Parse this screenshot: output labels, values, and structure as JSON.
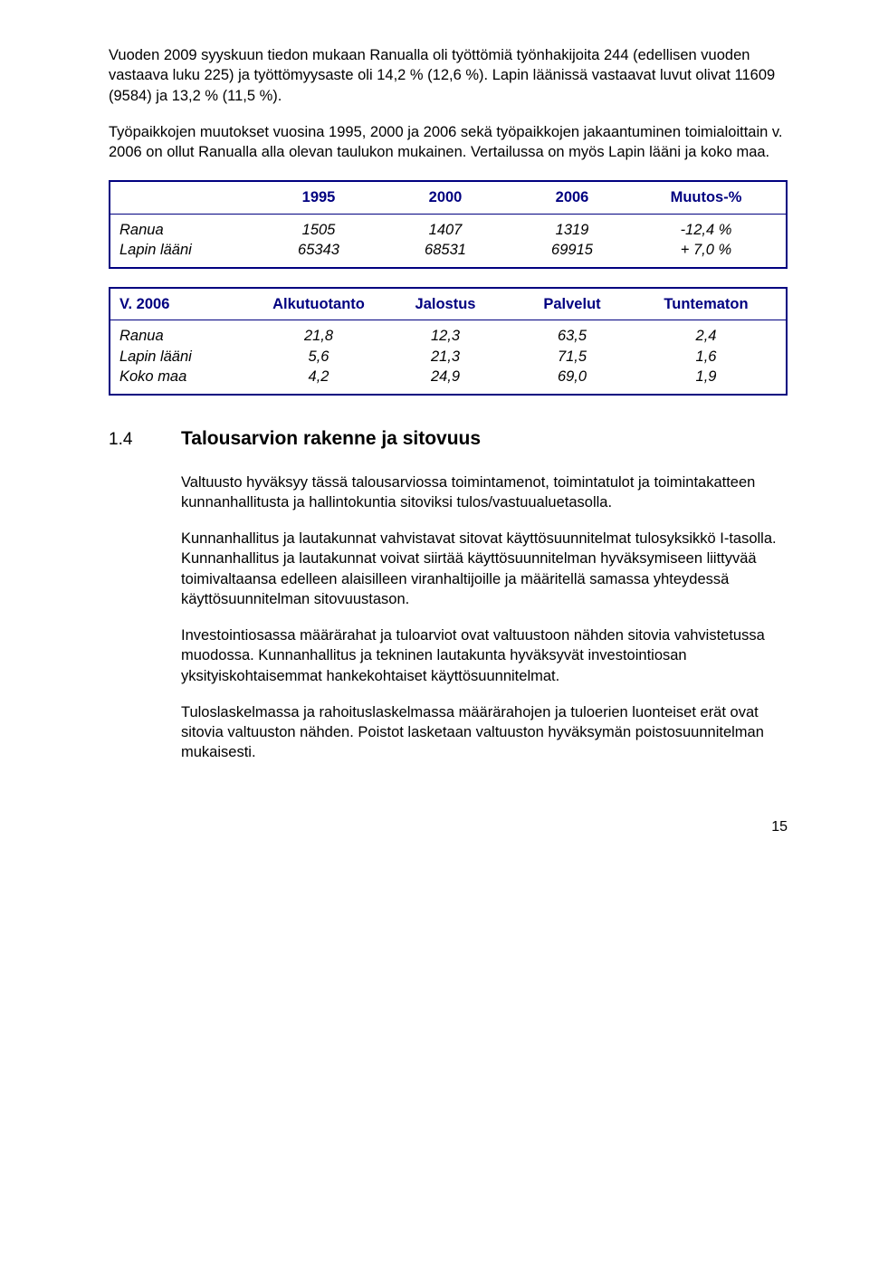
{
  "intro": {
    "p1": "Vuoden 2009 syyskuun tiedon mukaan Ranualla oli työttömiä työnhakijoita 244 (edellisen vuoden vastaava luku 225) ja työttömyysaste oli 14,2 % (12,6 %). Lapin läänissä vastaavat luvut olivat 11609 (9584) ja 13,2 % (11,5 %).",
    "p2": "Työpaikkojen muutokset vuosina 1995, 2000 ja 2006 sekä työpaikkojen jakaantuminen toimialoittain v. 2006 on ollut Ranualla alla olevan taulukon mukainen. Vertailussa on myös Lapin lääni ja koko maa."
  },
  "table1": {
    "header": {
      "label": "",
      "c1": "1995",
      "c2": "2000",
      "c3": "2006",
      "c4": "Muutos-%"
    },
    "rows": [
      {
        "label": "Ranua",
        "c1": "1505",
        "c2": "1407",
        "c3": "1319",
        "c4": "-12,4 %"
      },
      {
        "label": "Lapin lääni",
        "c1": "65343",
        "c2": "68531",
        "c3": "69915",
        "c4": "+ 7,0 %"
      }
    ],
    "style": {
      "border_color": "#000080",
      "header_text_color": "#000080"
    }
  },
  "table2": {
    "header": {
      "label": "V. 2006",
      "c1": "Alkutuotanto",
      "c2": "Jalostus",
      "c3": "Palvelut",
      "c4": "Tuntematon"
    },
    "rows": [
      {
        "label": "Ranua",
        "c1": "21,8",
        "c2": "12,3",
        "c3": "63,5",
        "c4": "2,4"
      },
      {
        "label": "Lapin lääni",
        "c1": "5,6",
        "c2": "21,3",
        "c3": "71,5",
        "c4": "1,6"
      },
      {
        "label": "Koko maa",
        "c1": "4,2",
        "c2": "24,9",
        "c3": "69,0",
        "c4": "1,9"
      }
    ],
    "style": {
      "border_color": "#000080",
      "header_text_color": "#000080"
    }
  },
  "section": {
    "num": "1.4",
    "title": "Talousarvion rakenne ja sitovuus",
    "p1": "Valtuusto hyväksyy tässä talousarviossa toimintamenot, toimintatulot ja toimintakatteen kunnanhallitusta ja hallintokuntia sitoviksi tulos/vastuualuetasolla.",
    "p2": "Kunnanhallitus ja lautakunnat vahvistavat sitovat käyttösuunnitelmat tulosyksikkö I-tasolla. Kunnanhallitus ja lautakunnat voivat siirtää käyttösuunnitelman hyväksymiseen liittyvää toimivaltaansa edelleen alaisilleen viranhaltijoille ja määritellä samassa yhteydessä käyttösuunnitelman sitovuustason.",
    "p3": "Investointiosassa määrärahat ja tuloarviot ovat valtuustoon nähden sitovia vahvistetussa muodossa. Kunnanhallitus ja tekninen lautakunta hyväksyvät investointiosan yksityiskohtaisemmat hankekohtaiset käyttösuunnitelmat.",
    "p4": "Tuloslaskelmassa ja rahoituslaskelmassa määrärahojen ja tuloerien luonteiset erät ovat sitovia valtuuston nähden. Poistot lasketaan valtuuston hyväksymän poistosuunnitelman mukaisesti."
  },
  "page": "15"
}
